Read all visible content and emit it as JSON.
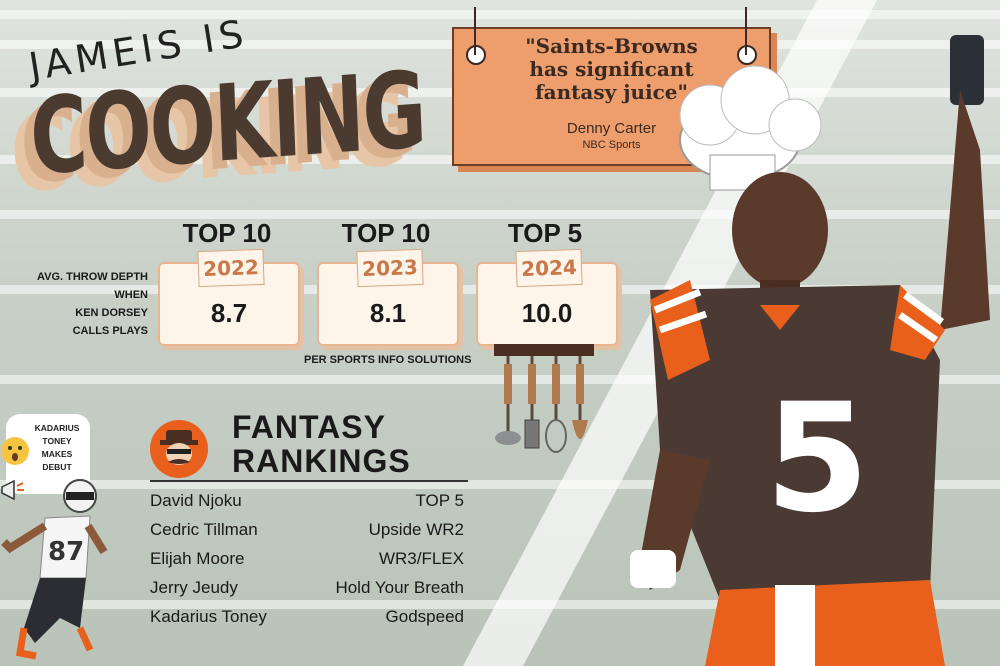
{
  "headline": {
    "line1": "JAMEIS IS",
    "line2": "COOKING"
  },
  "quote": {
    "line1": "\"Saints-Browns",
    "line2": "has significant",
    "line3": "fantasy juice\"",
    "author": "Denny Carter",
    "source": "NBC Sports"
  },
  "throw_depth": {
    "label_lines": [
      "AVG. THROW DEPTH",
      "WHEN",
      "KEN DORSEY",
      "CALLS PLAYS"
    ],
    "source_note": "PER SPORTS INFO SOLUTIONS",
    "stats": [
      {
        "rank": "TOP 10",
        "year": "2022",
        "value": "8.7"
      },
      {
        "rank": "TOP 10",
        "year": "2023",
        "value": "8.1"
      },
      {
        "rank": "TOP 5",
        "year": "2024",
        "value": "10.0"
      }
    ]
  },
  "fantasy": {
    "title_line1": "FANTASY",
    "title_line2": "RANKINGS",
    "rows": [
      {
        "player": "David Njoku",
        "rank": "TOP 5"
      },
      {
        "player": "Cedric Tillman",
        "rank": "Upside WR2"
      },
      {
        "player": "Elijah Moore",
        "rank": "WR3/FLEX"
      },
      {
        "player": "Jerry Jeudy",
        "rank": "Hold Your Breath"
      },
      {
        "player": "Kadarius Toney",
        "rank": "Godspeed"
      }
    ]
  },
  "bubble": {
    "lines": [
      "KADARIUS",
      "TONEY",
      "MAKES",
      "DEBUT"
    ]
  },
  "jersey_numbers": {
    "qb": "5",
    "wr": "87"
  },
  "colors": {
    "accent_orange": "#ee9e6c",
    "browns_brown": "#4a3a30",
    "browns_orange": "#e8601c"
  },
  "icons": [
    "chef-hat-icon",
    "kitchen-utensils-icon",
    "chef-mascot-icon",
    "surprised-emoji-icon",
    "megaphone-icon"
  ]
}
